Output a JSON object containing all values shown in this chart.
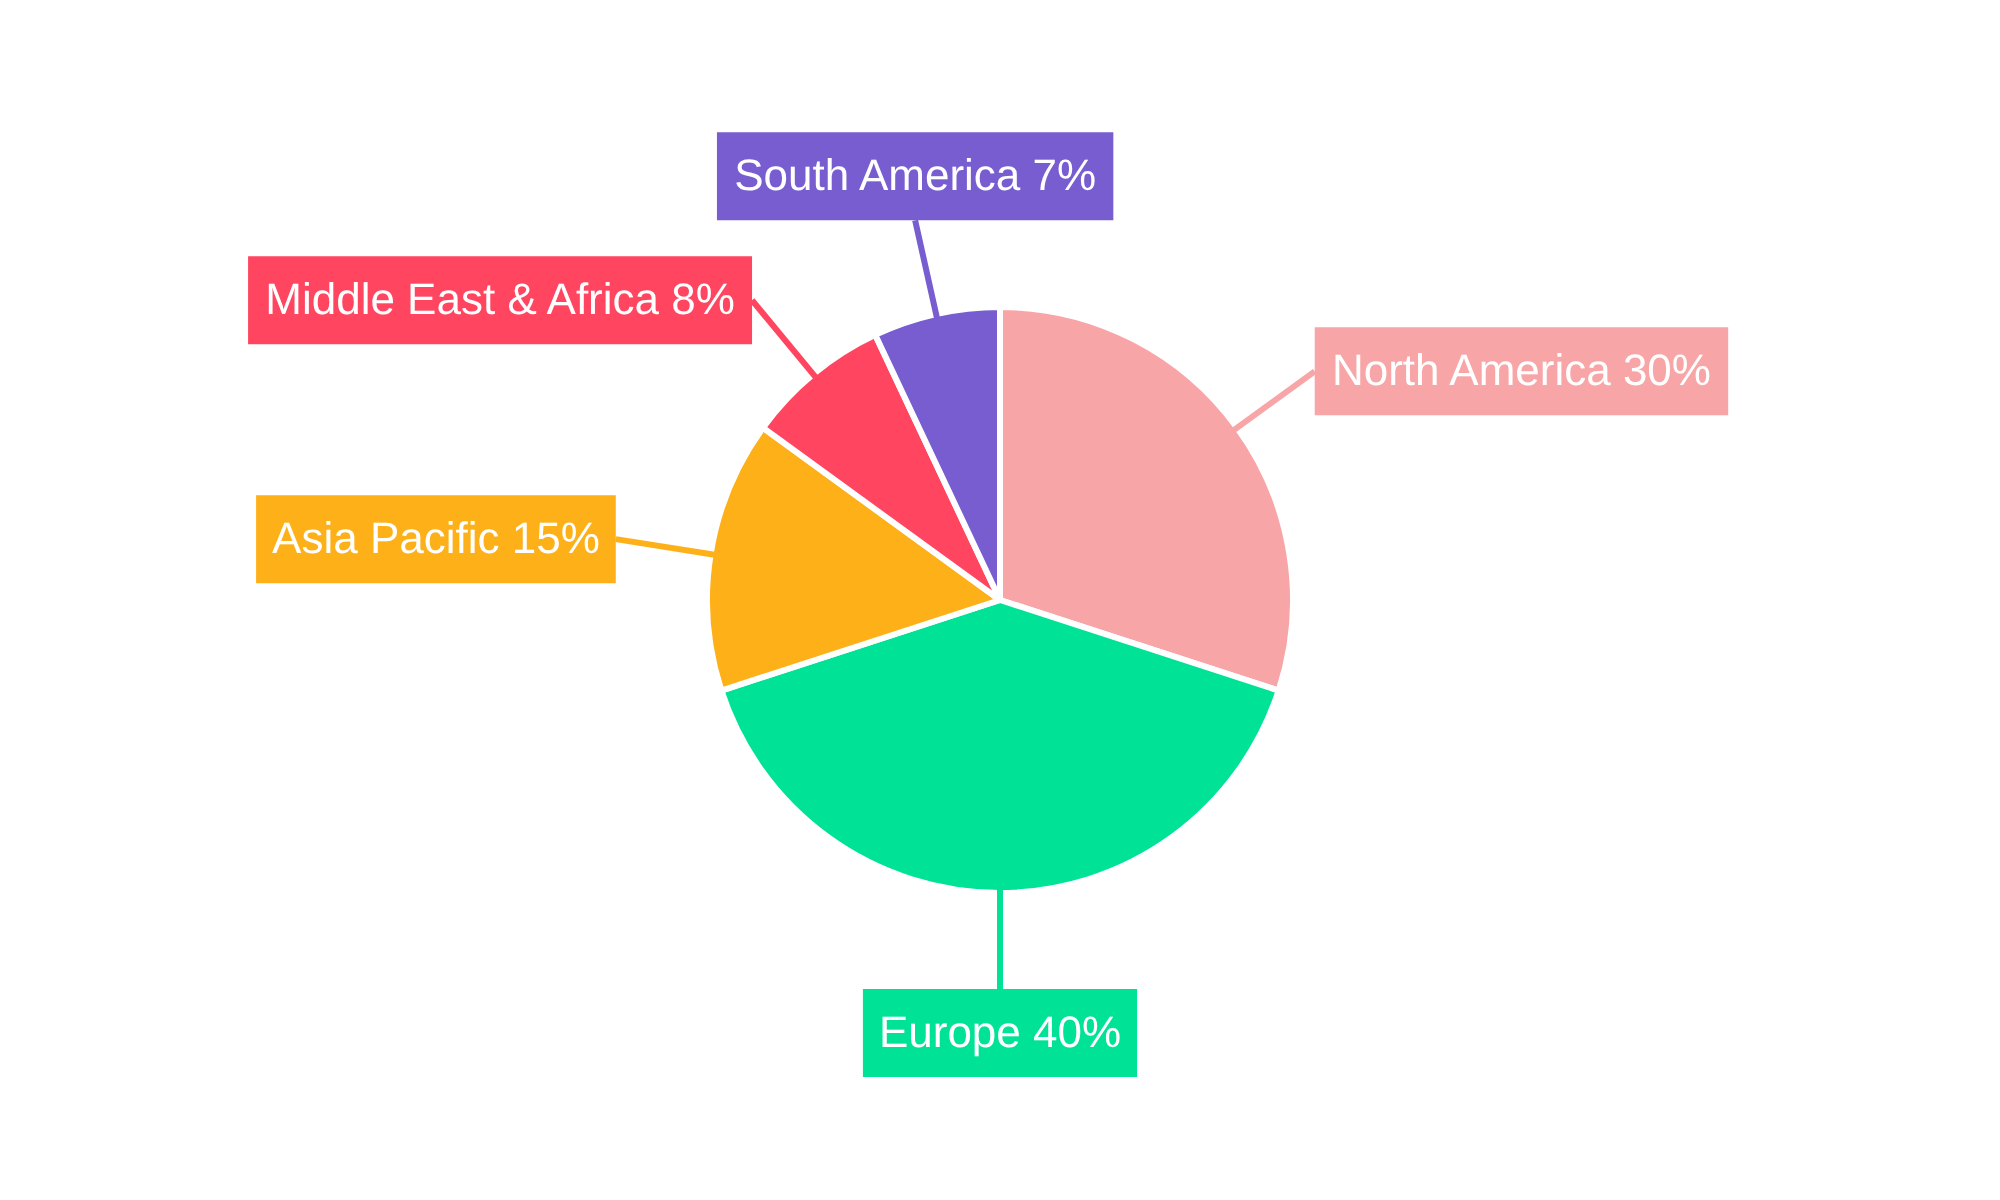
{
  "chart_data": {
    "type": "pie",
    "categories": [
      "North America",
      "Europe",
      "Asia Pacific",
      "Middle East & Africa",
      "South America"
    ],
    "values": [
      30,
      40,
      15,
      8,
      7
    ],
    "value_labels": [
      "30%",
      "40%",
      "15%",
      "8%",
      "7%"
    ],
    "colors": [
      "#f8a5a7",
      "#00e396",
      "#feb019",
      "#ff4560",
      "#775dd0"
    ],
    "legend": false
  }
}
